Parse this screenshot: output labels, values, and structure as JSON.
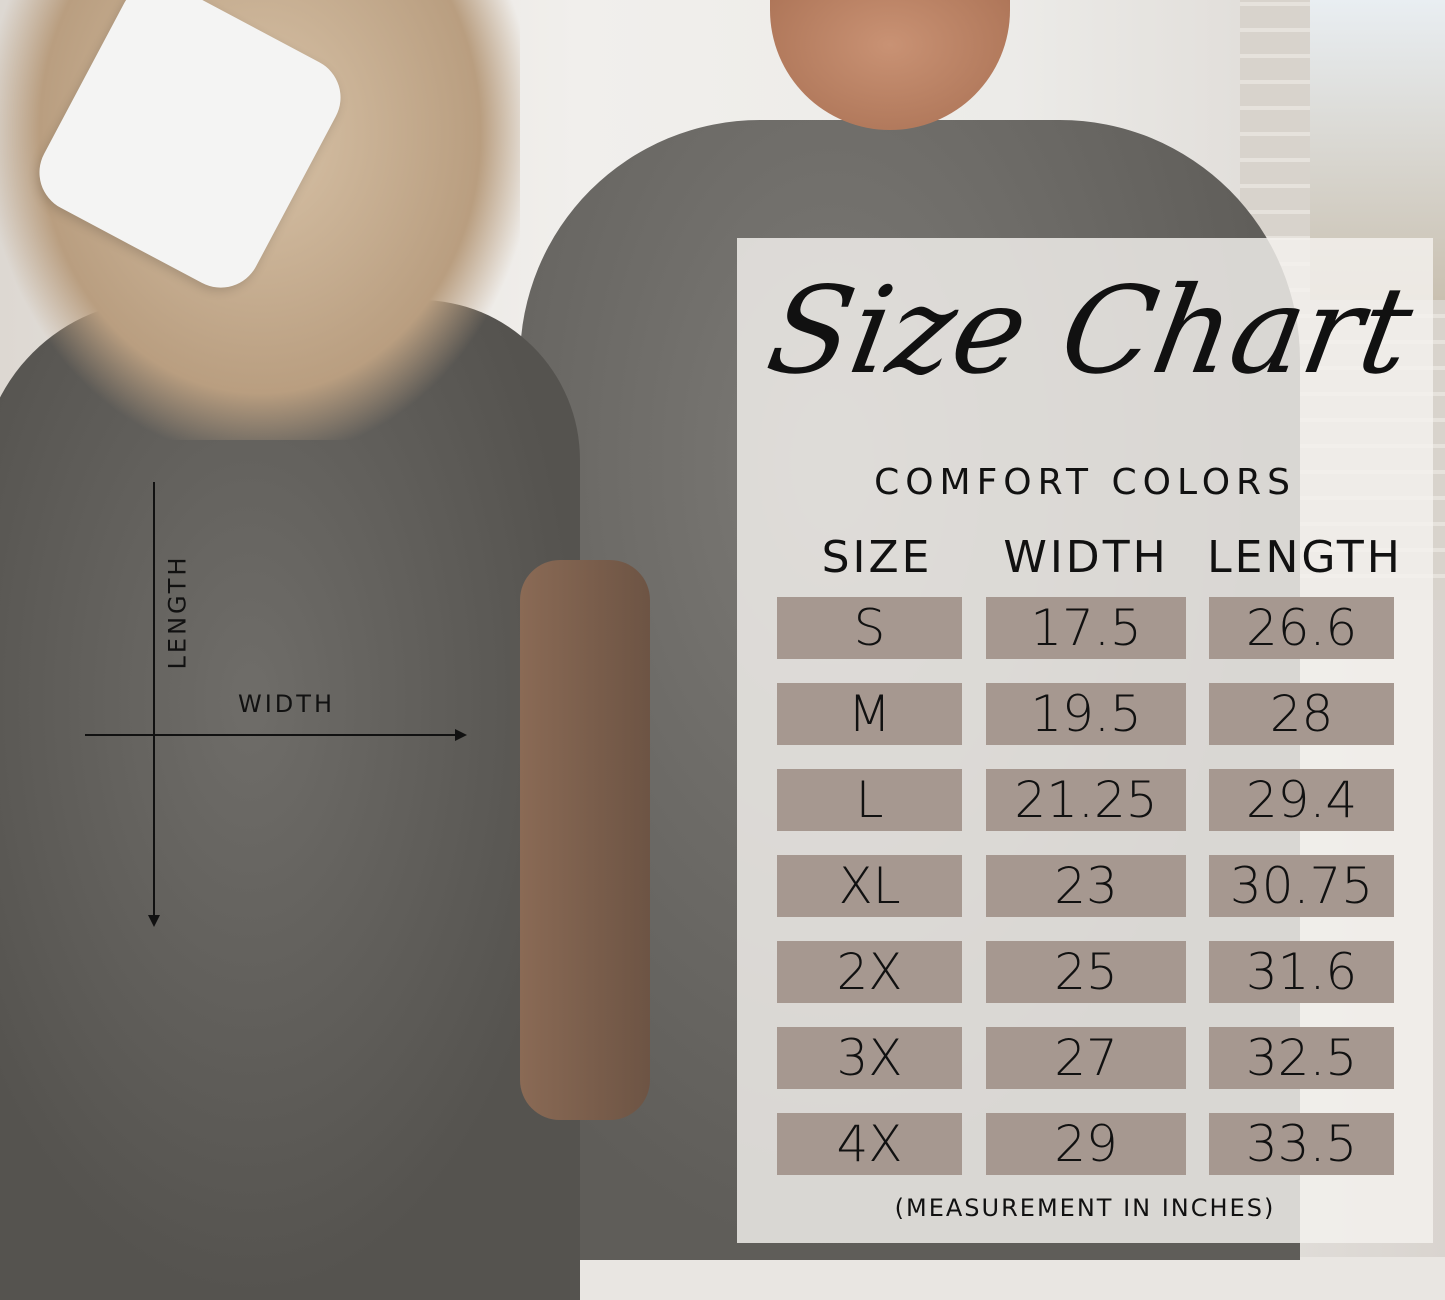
{
  "title": "Size Chart",
  "brand": "COMFORT COLORS",
  "diagram": {
    "length_label": "LENGTH",
    "width_label": "WIDTH"
  },
  "columns": [
    "SIZE",
    "WIDTH",
    "LENGTH"
  ],
  "rows": [
    [
      "S",
      "17.5",
      "26.6"
    ],
    [
      "M",
      "19.5",
      "28"
    ],
    [
      "L",
      "21.25",
      "29.4"
    ],
    [
      "XL",
      "23",
      "30.75"
    ],
    [
      "2X",
      "25",
      "31.6"
    ],
    [
      "3X",
      "27",
      "32.5"
    ],
    [
      "4X",
      "29",
      "33.5"
    ]
  ],
  "footnote": "(MEASUREMENT IN INCHES)",
  "colors": {
    "cell": "#a69890",
    "panel": "#f4f1ee",
    "text": "#111111"
  }
}
